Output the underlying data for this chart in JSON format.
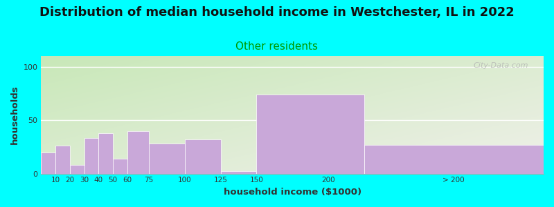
{
  "title": "Distribution of median household income in Westchester, IL in 2022",
  "subtitle": "Other residents",
  "xlabel": "household income ($1000)",
  "ylabel": "households",
  "background_color": "#00FFFF",
  "bar_color": "#C9A8D9",
  "categories": [
    "10",
    "20",
    "30",
    "40",
    "50",
    "60",
    "75",
    "100",
    "125",
    "150",
    "200",
    "> 200"
  ],
  "bin_left": [
    0,
    10,
    20,
    30,
    40,
    50,
    60,
    75,
    100,
    125,
    150,
    225
  ],
  "bin_right": [
    10,
    20,
    30,
    40,
    50,
    60,
    75,
    100,
    125,
    150,
    225,
    350
  ],
  "values": [
    20,
    26,
    8,
    33,
    38,
    14,
    40,
    28,
    32,
    2,
    74,
    27
  ],
  "tick_positions": [
    10,
    20,
    30,
    40,
    50,
    60,
    75,
    100,
    125,
    150,
    200,
    287
  ],
  "tick_labels": [
    "10",
    "20",
    "30",
    "40",
    "50",
    "60",
    "75",
    "100",
    "125",
    "150",
    "200",
    "> 200"
  ],
  "ylim": [
    0,
    110
  ],
  "yticks": [
    0,
    50,
    100
  ],
  "title_fontsize": 13,
  "subtitle_fontsize": 11,
  "subtitle_color": "#009900",
  "grad_color_topleft": "#c8e8b8",
  "grad_color_bottomright": "#f0f0ea",
  "watermark_text": "City-Data.com"
}
